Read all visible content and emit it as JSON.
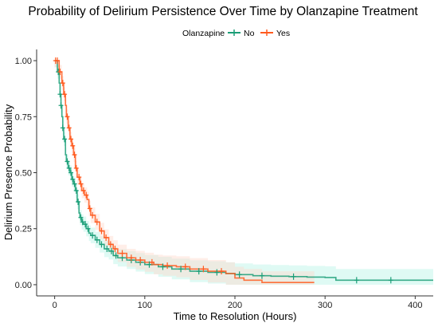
{
  "chart_data": {
    "type": "line",
    "subtype": "kaplan-meier-step",
    "title": "Probability of Delirium Persistence Over Time by Olanzapine Treatment",
    "xlabel": "Time to Resolution (Hours)",
    "ylabel": "Delirium Presence Probability",
    "xlim": [
      -20,
      420
    ],
    "ylim": [
      -0.05,
      1.05
    ],
    "x_ticks": [
      0,
      100,
      200,
      300,
      400
    ],
    "y_ticks": [
      0.0,
      0.25,
      0.5,
      0.75,
      1.0
    ],
    "x_tick_labels": [
      "0",
      "100",
      "200",
      "300",
      "400"
    ],
    "y_tick_labels": [
      "0.00",
      "0.25",
      "0.50",
      "0.75",
      "1.00"
    ],
    "grid": false,
    "legend": {
      "title": "Olanzapine",
      "placement": "top"
    },
    "series": [
      {
        "name": "No",
        "color": "#1b9e77",
        "x": [
          0,
          3,
          5,
          6,
          7,
          8,
          9,
          10,
          12,
          13,
          15,
          17,
          19,
          21,
          23,
          25,
          27,
          28,
          30,
          32,
          35,
          38,
          40,
          45,
          50,
          55,
          60,
          65,
          70,
          80,
          90,
          100,
          115,
          130,
          150,
          170,
          190,
          200,
          220,
          240,
          260,
          280,
          300,
          312,
          350,
          420
        ],
        "y": [
          1.0,
          0.95,
          0.9,
          0.85,
          0.8,
          0.75,
          0.7,
          0.65,
          0.58,
          0.55,
          0.52,
          0.5,
          0.47,
          0.45,
          0.42,
          0.37,
          0.32,
          0.3,
          0.28,
          0.27,
          0.25,
          0.23,
          0.22,
          0.2,
          0.18,
          0.16,
          0.15,
          0.13,
          0.12,
          0.11,
          0.1,
          0.09,
          0.08,
          0.07,
          0.06,
          0.055,
          0.05,
          0.045,
          0.04,
          0.038,
          0.036,
          0.034,
          0.032,
          0.02,
          0.02,
          0.02
        ],
        "censor_x": [
          4,
          6,
          7,
          9,
          11,
          14,
          16,
          18,
          20,
          22,
          24,
          26,
          29,
          31,
          34,
          37,
          42,
          47,
          52,
          58,
          63,
          68,
          75,
          85,
          95,
          105,
          120,
          140,
          160,
          180,
          205,
          230,
          265,
          335,
          373
        ]
      },
      {
        "name": "Yes",
        "color": "#ff5a1f",
        "x": [
          0,
          5,
          8,
          10,
          12,
          13,
          15,
          17,
          19,
          21,
          23,
          25,
          28,
          30,
          33,
          36,
          38,
          40,
          45,
          50,
          55,
          60,
          65,
          70,
          80,
          90,
          100,
          110,
          120,
          135,
          150,
          170,
          190,
          200,
          210,
          230,
          288
        ],
        "y": [
          1.0,
          0.95,
          0.9,
          0.85,
          0.8,
          0.75,
          0.7,
          0.65,
          0.62,
          0.58,
          0.52,
          0.48,
          0.45,
          0.42,
          0.4,
          0.38,
          0.34,
          0.31,
          0.28,
          0.24,
          0.21,
          0.18,
          0.16,
          0.14,
          0.12,
          0.11,
          0.1,
          0.09,
          0.085,
          0.08,
          0.07,
          0.06,
          0.05,
          0.03,
          0.02,
          0.01,
          0.01
        ],
        "censor_x": [
          1,
          3,
          6,
          9,
          11,
          14,
          16,
          18,
          20,
          22,
          24,
          27,
          29,
          32,
          35,
          39,
          42,
          47,
          52,
          57,
          62,
          67,
          75,
          85,
          95,
          108,
          125,
          145,
          165,
          185
        ]
      }
    ],
    "confidence_band_colors": [
      "#b9f5e6",
      "#ffd9cc"
    ]
  }
}
